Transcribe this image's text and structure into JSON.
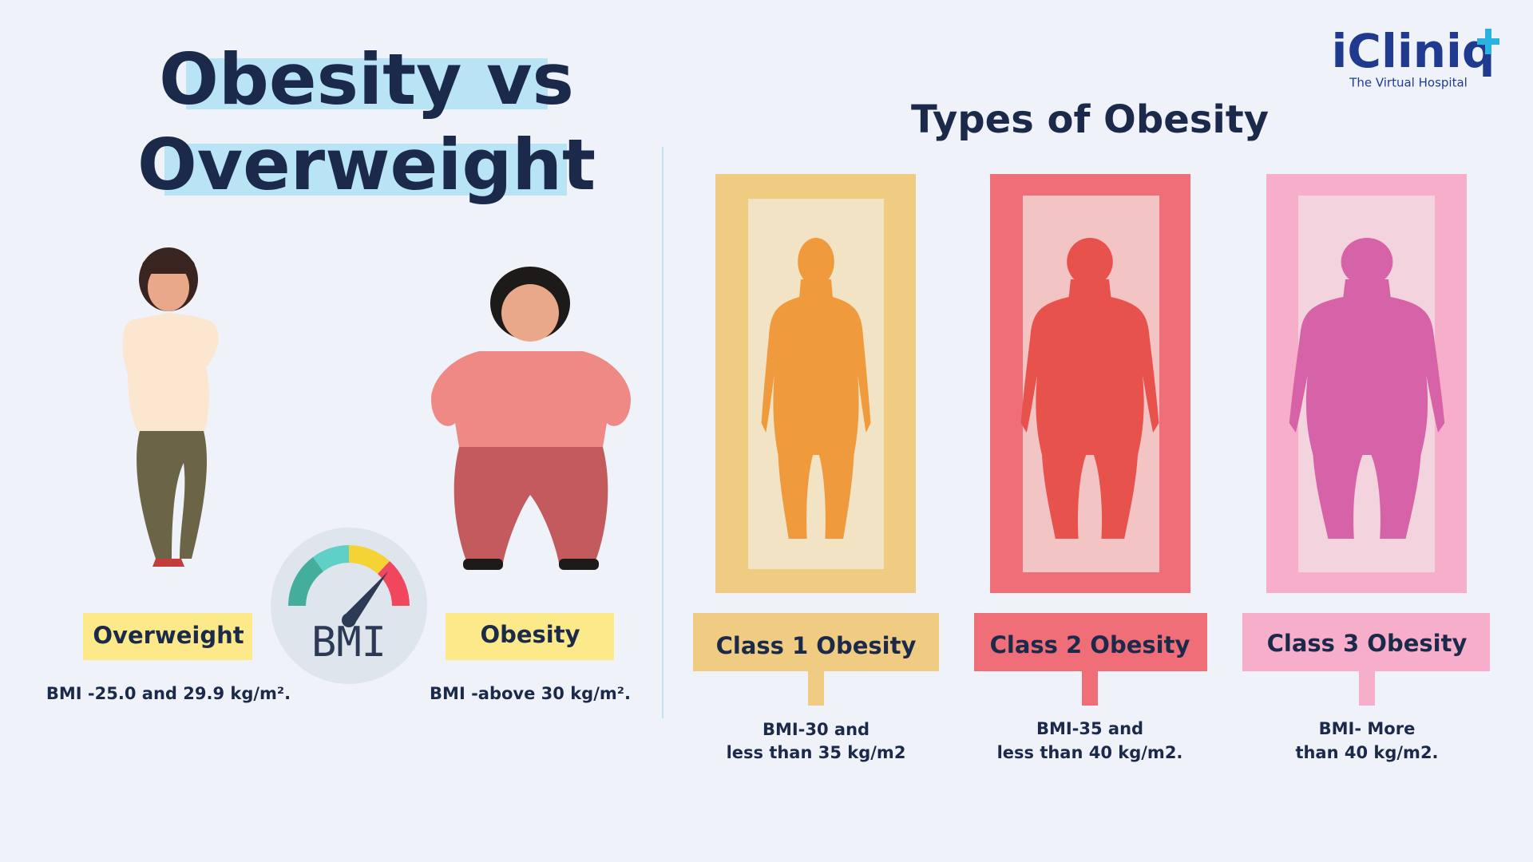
{
  "title": [
    "Obesity vs",
    "Overweight"
  ],
  "logo": {
    "name": "iCliniq",
    "tagline": "The Virtual Hospital"
  },
  "comparison": [
    {
      "label": "Overweight",
      "description": "BMI -25.0 and 29.9 kg/m²."
    },
    {
      "label": "Obesity",
      "description": "BMI -above 30 kg/m²."
    }
  ],
  "gauge_label": "BMI",
  "types_heading": "Types of Obesity",
  "classes": [
    {
      "name": "Class 1 Obesity",
      "description": [
        "BMI-30 and",
        "less than 35 kg/m2"
      ]
    },
    {
      "name": "Class 2 Obesity",
      "description": [
        "BMI-35 and",
        "less than 40 kg/m2."
      ]
    },
    {
      "name": "Class 3 Obesity",
      "description": [
        "BMI- More",
        "than 40 kg/m2."
      ]
    }
  ]
}
